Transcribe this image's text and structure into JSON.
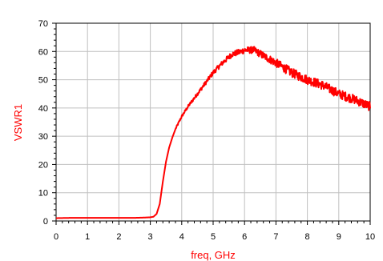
{
  "colors": {
    "series": "#ff0000",
    "grid": "#c0c0c0",
    "axis": "#000000",
    "background": "#ffffff"
  },
  "chart_data": {
    "type": "line",
    "title": "",
    "xlabel": "freq, GHz",
    "ylabel": "VSWR1",
    "xlim": [
      0,
      10
    ],
    "ylim": [
      0,
      70
    ],
    "x_ticks": [
      "0",
      "1",
      "2",
      "3",
      "4",
      "5",
      "6",
      "7",
      "8",
      "9",
      "10"
    ],
    "y_ticks": [
      "0",
      "10",
      "20",
      "30",
      "40",
      "50",
      "60",
      "70"
    ],
    "grid": true,
    "legend": "none",
    "series": [
      {
        "noisy": true,
        "x": [
          0,
          0.5,
          1,
          1.5,
          2,
          2.5,
          2.8,
          3.0,
          3.1,
          3.2,
          3.3,
          3.4,
          3.5,
          3.6,
          3.7,
          3.8,
          4.0,
          4.2,
          4.5,
          4.8,
          5.0,
          5.3,
          5.6,
          5.9,
          6.0,
          6.3,
          6.6,
          7.0,
          7.5,
          8.0,
          8.5,
          9.0,
          9.5,
          10.0
        ],
        "y": [
          1.0,
          1.1,
          1.1,
          1.1,
          1.1,
          1.1,
          1.2,
          1.3,
          1.5,
          2.5,
          6.0,
          14.0,
          21.0,
          26.0,
          29.5,
          32.5,
          37.0,
          40.5,
          45.0,
          49.5,
          52.5,
          56.0,
          59.0,
          60.0,
          60.5,
          60.5,
          58.5,
          56.0,
          52.5,
          50.0,
          48.0,
          45.0,
          43.0,
          40.5
        ]
      }
    ]
  }
}
